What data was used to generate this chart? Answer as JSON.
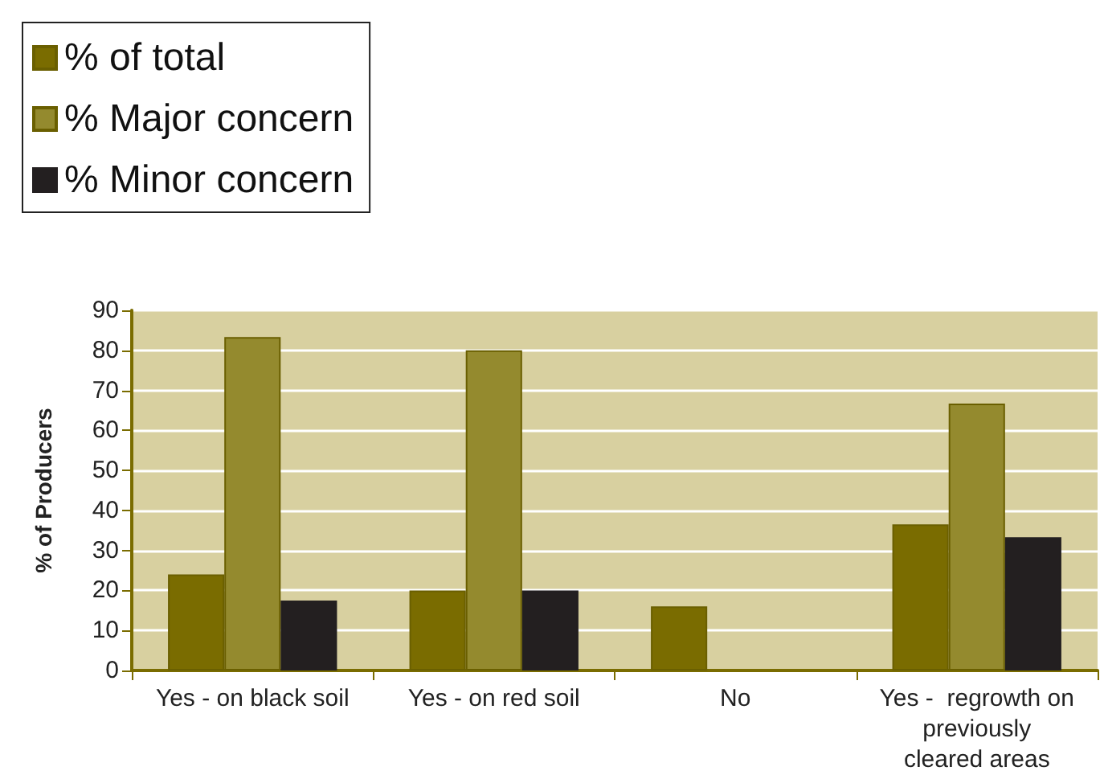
{
  "chart_data": {
    "type": "bar",
    "ylabel": "% of Producers",
    "categories": [
      "Yes - on black soil",
      "Yes - on red soil",
      "No",
      "Yes -  regrowth on previously cleared areas"
    ],
    "series": [
      {
        "name": "% of total",
        "color": "#7a6c00",
        "values": [
          24,
          20,
          16,
          36.5
        ]
      },
      {
        "name": "% Major concern",
        "color": "#948a2e",
        "values": [
          83.3,
          80,
          null,
          66.7
        ]
      },
      {
        "name": "% Minor concern",
        "color": "#231f20",
        "values": [
          17.5,
          20,
          null,
          33.3
        ]
      }
    ],
    "ylim": [
      0,
      90
    ],
    "yticks": [
      0,
      10,
      20,
      30,
      40,
      50,
      60,
      70,
      80,
      90
    ],
    "grid": "y",
    "legend": "top left"
  }
}
